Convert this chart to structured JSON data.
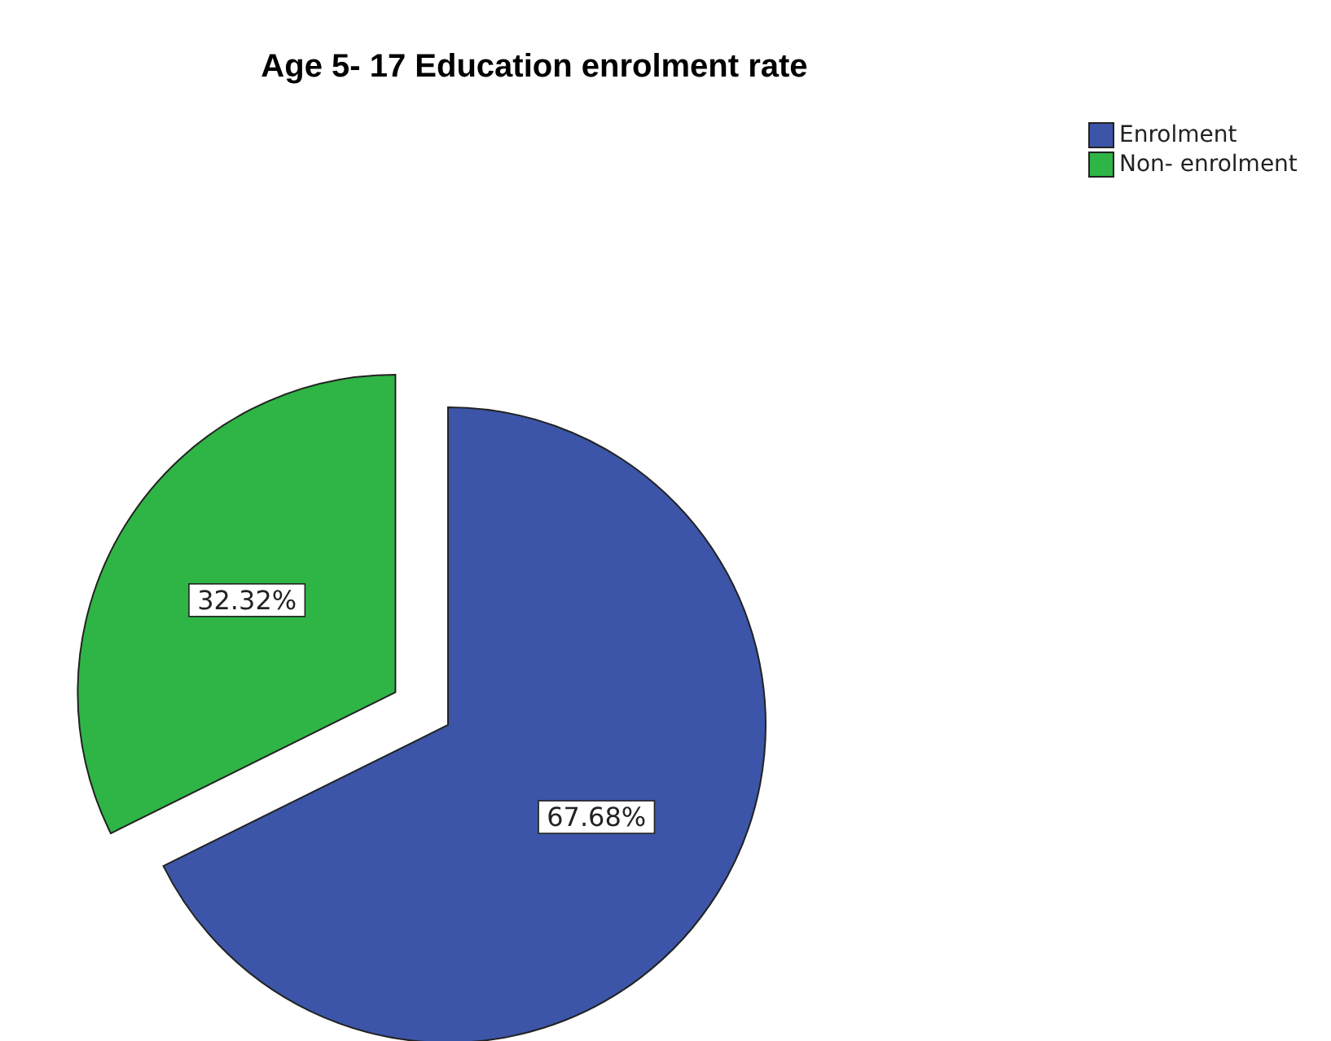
{
  "chart_data": {
    "type": "pie",
    "title": "Age 5- 17 Education enrolment rate",
    "categories": [
      "Enrolment",
      "Non- enrolment"
    ],
    "values": [
      67.68,
      32.32
    ],
    "colors": [
      "#3c55a8",
      "#2fb545"
    ],
    "value_labels": [
      "67.68%",
      "32.32%"
    ],
    "legend": "top right"
  }
}
